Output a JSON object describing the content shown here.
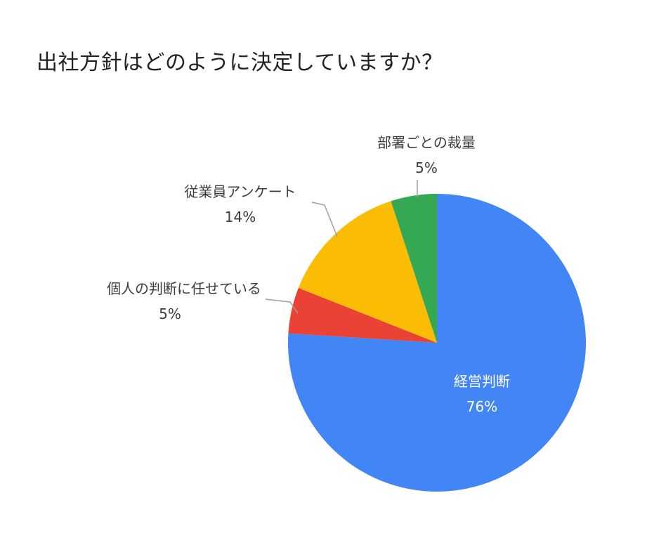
{
  "chart_data": {
    "type": "pie",
    "title": "出社方針はどのように決定していますか？",
    "slices": [
      {
        "label": "経営判断",
        "value": 76,
        "value_label": "76%",
        "color": "#4285f4",
        "label_inside": true
      },
      {
        "label": "個人の判断に任せている",
        "value": 5,
        "value_label": "5%",
        "color": "#ea4335",
        "label_inside": false
      },
      {
        "label": "従業員アンケート",
        "value": 14,
        "value_label": "14%",
        "color": "#fbbc04",
        "label_inside": false
      },
      {
        "label": "部署ごとの裁量",
        "value": 5,
        "value_label": "5%",
        "color": "#34a853",
        "label_inside": false
      }
    ],
    "legend": "none"
  }
}
